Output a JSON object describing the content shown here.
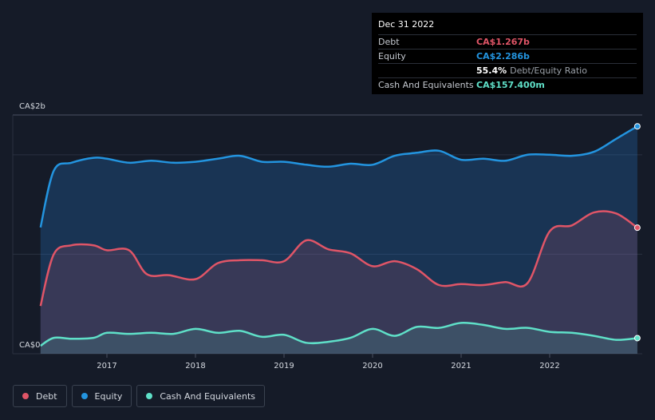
{
  "chart_data": {
    "type": "area",
    "y_axis": {
      "max_label": "CA$2b",
      "min_label": "CA$0",
      "ylim": [
        0,
        2.4
      ]
    },
    "x_ticks": [
      "2017",
      "2018",
      "2019",
      "2020",
      "2021",
      "2022"
    ],
    "series": [
      {
        "name": "Debt",
        "color": "#e05567",
        "points": [
          [
            2016.25,
            0.48
          ],
          [
            2016.4,
            1.0
          ],
          [
            2016.6,
            1.09
          ],
          [
            2016.85,
            1.09
          ],
          [
            2017.0,
            1.04
          ],
          [
            2017.25,
            1.04
          ],
          [
            2017.45,
            0.8
          ],
          [
            2017.7,
            0.79
          ],
          [
            2018.0,
            0.75
          ],
          [
            2018.25,
            0.91
          ],
          [
            2018.5,
            0.94
          ],
          [
            2018.75,
            0.94
          ],
          [
            2019.0,
            0.93
          ],
          [
            2019.25,
            1.14
          ],
          [
            2019.5,
            1.05
          ],
          [
            2019.75,
            1.01
          ],
          [
            2020.0,
            0.88
          ],
          [
            2020.25,
            0.93
          ],
          [
            2020.5,
            0.85
          ],
          [
            2020.75,
            0.69
          ],
          [
            2021.0,
            0.7
          ],
          [
            2021.25,
            0.69
          ],
          [
            2021.5,
            0.72
          ],
          [
            2021.75,
            0.71
          ],
          [
            2022.0,
            1.23
          ],
          [
            2022.25,
            1.29
          ],
          [
            2022.5,
            1.42
          ],
          [
            2022.75,
            1.41
          ],
          [
            2022.99,
            1.267
          ]
        ]
      },
      {
        "name": "Equity",
        "color": "#2394df",
        "points": [
          [
            2016.25,
            1.27
          ],
          [
            2016.4,
            1.84
          ],
          [
            2016.6,
            1.92
          ],
          [
            2016.85,
            1.97
          ],
          [
            2017.0,
            1.96
          ],
          [
            2017.25,
            1.92
          ],
          [
            2017.5,
            1.94
          ],
          [
            2017.75,
            1.92
          ],
          [
            2018.0,
            1.93
          ],
          [
            2018.25,
            1.96
          ],
          [
            2018.5,
            1.99
          ],
          [
            2018.75,
            1.93
          ],
          [
            2019.0,
            1.93
          ],
          [
            2019.25,
            1.9
          ],
          [
            2019.5,
            1.88
          ],
          [
            2019.75,
            1.91
          ],
          [
            2020.0,
            1.9
          ],
          [
            2020.25,
            1.99
          ],
          [
            2020.5,
            2.02
          ],
          [
            2020.75,
            2.04
          ],
          [
            2021.0,
            1.95
          ],
          [
            2021.25,
            1.96
          ],
          [
            2021.5,
            1.94
          ],
          [
            2021.75,
            2.0
          ],
          [
            2022.0,
            2.0
          ],
          [
            2022.25,
            1.99
          ],
          [
            2022.5,
            2.03
          ],
          [
            2022.75,
            2.16
          ],
          [
            2022.99,
            2.286
          ]
        ]
      },
      {
        "name": "Cash And Equivalents",
        "color": "#5fe0c8",
        "points": [
          [
            2016.25,
            0.08
          ],
          [
            2016.4,
            0.16
          ],
          [
            2016.6,
            0.15
          ],
          [
            2016.85,
            0.16
          ],
          [
            2017.0,
            0.21
          ],
          [
            2017.25,
            0.2
          ],
          [
            2017.5,
            0.21
          ],
          [
            2017.75,
            0.2
          ],
          [
            2018.0,
            0.25
          ],
          [
            2018.25,
            0.21
          ],
          [
            2018.5,
            0.23
          ],
          [
            2018.75,
            0.17
          ],
          [
            2019.0,
            0.19
          ],
          [
            2019.25,
            0.11
          ],
          [
            2019.5,
            0.12
          ],
          [
            2019.75,
            0.16
          ],
          [
            2020.0,
            0.25
          ],
          [
            2020.25,
            0.18
          ],
          [
            2020.5,
            0.27
          ],
          [
            2020.75,
            0.26
          ],
          [
            2021.0,
            0.31
          ],
          [
            2021.25,
            0.29
          ],
          [
            2021.5,
            0.25
          ],
          [
            2021.75,
            0.26
          ],
          [
            2022.0,
            0.22
          ],
          [
            2022.25,
            0.21
          ],
          [
            2022.5,
            0.18
          ],
          [
            2022.75,
            0.14
          ],
          [
            2022.99,
            0.157
          ]
        ]
      }
    ]
  },
  "tooltip": {
    "date": "Dec 31 2022",
    "debt_label": "Debt",
    "debt_value": "CA$1.267b",
    "equity_label": "Equity",
    "equity_value": "CA$2.286b",
    "ratio_value": "55.4%",
    "ratio_text": "Debt/Equity Ratio",
    "cash_label": "Cash And Equivalents",
    "cash_value": "CA$157.400m"
  },
  "legend": {
    "debt": "Debt",
    "equity": "Equity",
    "cash": "Cash And Equivalents"
  }
}
